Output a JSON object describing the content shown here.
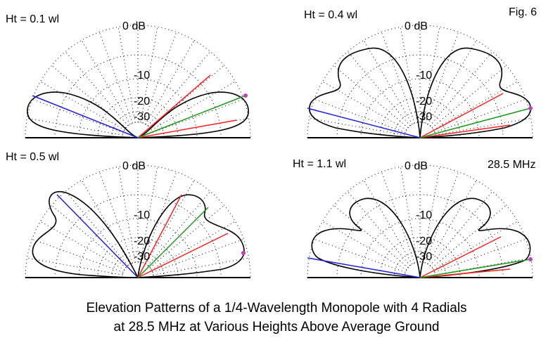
{
  "figure_label": "Fig. 6",
  "frequency_label": "28.5 MHz",
  "caption": {
    "line1": "Elevation Patterns of a 1/4-Wavelength Monopole with 4 Radials",
    "line2": "at 28.5 MHz at Various Heights Above Average Ground"
  },
  "ring_labels": [
    "0 dB",
    "-10",
    "-20",
    "-30"
  ],
  "colors": {
    "pattern": "#000000",
    "grid_dots": "#000000",
    "ground": "#000000",
    "line_blue": "#1f1fe0",
    "line_red": "#ff2020",
    "line_green": "#1a9a1a",
    "marker": "#c040c0"
  },
  "panels": [
    {
      "label": "Ht = 0.1 wl"
    },
    {
      "label": "Ht = 0.4 wl"
    },
    {
      "label": "Ht = 0.5 wl"
    },
    {
      "label": "Ht = 1.1 wl"
    }
  ]
}
